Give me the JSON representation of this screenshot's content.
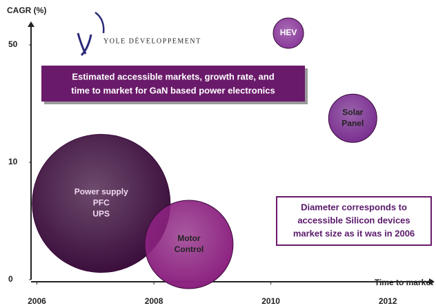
{
  "chart_data": {
    "type": "bubble",
    "title": "CAGR (%)",
    "x_label": "Time to market",
    "logo": "YOLE DÉVELOPPEMENT",
    "banner": [
      "Estimated accessible markets, growth rate, and",
      "time to market for GaN based power electronics"
    ],
    "note": [
      "Diameter corresponds to",
      "accessible Silicon devices",
      "market size as it was in 2006"
    ],
    "xlim": [
      2005.9,
      2012.8
    ],
    "xticks": [
      2006,
      2008,
      2010,
      2012
    ],
    "ylim": [
      0,
      58
    ],
    "yticks": [
      0,
      10,
      50
    ],
    "labels": [
      [
        "Power supply",
        "PFC",
        "UPS"
      ],
      [
        "Motor",
        "Control"
      ],
      [
        "Solar",
        "Panel"
      ],
      [
        "HEV"
      ]
    ],
    "x": [
      2007.1,
      2008.6,
      2011.4,
      2010.3
    ],
    "y": [
      6.5,
      3,
      25,
      54
    ],
    "sizes": [
      100,
      64,
      35,
      22
    ],
    "colors": [
      "#3c0f3c",
      "#8c2280",
      "#7a3090",
      "#8a3a9a"
    ],
    "label_colors": [
      "#f0d8f0",
      "#222222",
      "#222222",
      "#ffffff"
    ]
  }
}
